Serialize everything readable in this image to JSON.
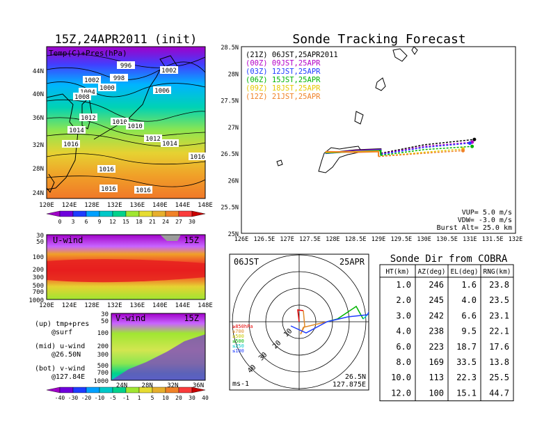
{
  "map_panel": {
    "title": "15Z,24APR2011 (init)",
    "label": "Temp(C)+Pres(hPa)",
    "lat_ticks": [
      "44N",
      "40N",
      "36N",
      "32N",
      "28N",
      "24N"
    ],
    "lon_ticks": [
      "120E",
      "124E",
      "128E",
      "132E",
      "136E",
      "140E",
      "144E",
      "148E"
    ],
    "isobar_labels": [
      "996",
      "1002",
      "1002",
      "998",
      "1000",
      "1004",
      "1006",
      "1008",
      "1012",
      "1010",
      "1010",
      "1014",
      "1012",
      "1014",
      "1016",
      "1016",
      "1016",
      "1016",
      "1016"
    ],
    "colorbar_ticks": [
      "0",
      "3",
      "6",
      "9",
      "12",
      "15",
      "18",
      "21",
      "24",
      "27",
      "30"
    ],
    "colorbar_colors": [
      "#a000c8",
      "#6e00dc",
      "#1e3cff",
      "#00a0ff",
      "#00c8c8",
      "#00d28c",
      "#a0e632",
      "#e6dc32",
      "#e6af2d",
      "#f08228",
      "#fa3c3c",
      "#c80000"
    ]
  },
  "u_panel": {
    "label": "U-wind",
    "time": "15Z",
    "y_ticks": [
      "30",
      "50",
      "100",
      "200",
      "300",
      "500",
      "700",
      "1000"
    ],
    "x_ticks": [
      "120E",
      "124E",
      "128E",
      "132E",
      "136E",
      "140E",
      "144E",
      "148E"
    ]
  },
  "v_panel": {
    "label": "V-wind",
    "time": "15Z",
    "y_ticks": [
      "30",
      "50",
      "100",
      "200",
      "300",
      "500",
      "700",
      "1000"
    ],
    "x_ticks": [
      "24N",
      "28N",
      "32N",
      "36N"
    ],
    "colorbar_ticks": [
      "-40",
      "-30",
      "-20",
      "-10",
      "-5",
      "-1",
      "1",
      "5",
      "10",
      "20",
      "30",
      "40"
    ],
    "colorbar_colors": [
      "#a000c8",
      "#6e00dc",
      "#1e3cff",
      "#00a0ff",
      "#00c8c8",
      "#00d28c",
      "#a0e632",
      "#e6dc32",
      "#e6af2d",
      "#f08228",
      "#fa3c3c",
      "#c80000"
    ]
  },
  "legend_notes": {
    "line1": "(up) tmp+pres",
    "line2": "@surf",
    "line3": "(mid) u-wind",
    "line4": "@26.50N",
    "line5": "(bot) v-wind",
    "line6": "@127.84E"
  },
  "track_panel": {
    "title": "Sonde Tracking Forecast",
    "runs": [
      {
        "label": "(21Z) 06JST,25APR2011",
        "color": "#000000"
      },
      {
        "label": "(00Z) 09JST,25APR",
        "color": "#b400c8"
      },
      {
        "label": "(03Z) 12JST,25APR",
        "color": "#1e3cff"
      },
      {
        "label": "(06Z) 15JST,25APR",
        "color": "#00b400"
      },
      {
        "label": "(09Z) 18JST,25APR",
        "color": "#e6c800"
      },
      {
        "label": "(12Z) 21JST,25APR",
        "color": "#f08228"
      }
    ],
    "params": {
      "vup": "VUP= 5.0 m/s",
      "vdw": "VDW= -3.0 m/s",
      "burst": "Burst Alt= 25.0 km"
    },
    "lat_ticks": [
      "28.5N",
      "28N",
      "27.5N",
      "27N",
      "26.5N",
      "26N",
      "25.5N",
      "25N"
    ],
    "lon_ticks": [
      "126E",
      "126.5E",
      "127E",
      "127.5E",
      "128E",
      "128.5E",
      "129E",
      "129.5E",
      "130E",
      "130.5E",
      "131E",
      "131.5E",
      "132E"
    ]
  },
  "chart_data": [
    {
      "type": "line",
      "title": "Sonde Tracking Forecast",
      "xlim": [
        126,
        132
      ],
      "ylim": [
        25,
        28.5
      ],
      "series": [
        {
          "name": "(21Z) 06JST,25APR2011",
          "x": [
            127.84,
            128.5,
            129.05,
            129.05,
            130.0,
            131.1
          ],
          "y": [
            26.5,
            26.56,
            26.58,
            26.5,
            26.66,
            26.76
          ]
        },
        {
          "name": "(00Z) 09JST,25APR",
          "x": [
            127.84,
            128.5,
            129.05,
            129.05,
            130.0,
            131.05
          ],
          "y": [
            26.5,
            26.55,
            26.57,
            26.49,
            26.63,
            26.71
          ]
        },
        {
          "name": "(03Z) 12JST,25APR",
          "x": [
            127.84,
            128.5,
            129.05,
            129.05,
            130.0,
            131.0
          ],
          "y": [
            26.5,
            26.54,
            26.56,
            26.48,
            26.61,
            26.69
          ]
        },
        {
          "name": "(06Z) 15JST,25APR",
          "x": [
            127.84,
            128.5,
            129.05,
            129.05,
            130.0,
            131.05
          ],
          "y": [
            26.51,
            26.53,
            26.55,
            26.46,
            26.57,
            26.63
          ]
        },
        {
          "name": "(09Z) 18JST,25APR",
          "x": [
            127.84,
            128.5,
            129.0,
            129.0,
            130.0,
            130.85
          ],
          "y": [
            26.52,
            26.53,
            26.54,
            26.44,
            26.52,
            26.58
          ]
        },
        {
          "name": "(12Z) 21JST,25APR",
          "x": [
            127.84,
            128.5,
            129.0,
            129.0,
            130.0,
            130.85
          ],
          "y": [
            26.53,
            26.52,
            26.53,
            26.44,
            26.5,
            26.55
          ]
        }
      ]
    },
    {
      "type": "table",
      "title": "Sonde Dir from COBRA",
      "columns": [
        "HT(km)",
        "AZ(deg)",
        "EL(deg)",
        "RNG(km)"
      ],
      "rows": [
        [
          "1.0",
          "246",
          "1.6",
          "23.8"
        ],
        [
          "2.0",
          "245",
          "4.0",
          "23.5"
        ],
        [
          "3.0",
          "242",
          "6.6",
          "23.1"
        ],
        [
          "4.0",
          "238",
          "9.5",
          "22.1"
        ],
        [
          "6.0",
          "223",
          "18.7",
          "17.6"
        ],
        [
          "8.0",
          "169",
          "33.5",
          "13.8"
        ],
        [
          "10.0",
          "113",
          "22.3",
          "25.5"
        ],
        [
          "12.0",
          "100",
          "15.1",
          "44.7"
        ]
      ]
    }
  ],
  "hodograph": {
    "time_label": "06JST",
    "date_label": "25APR",
    "ring_labels": [
      "10",
      "20",
      "30",
      "40"
    ],
    "units": "ms-1",
    "location_line1": "26.5N",
    "location_line2": "127.875E",
    "level_legend": [
      {
        "label": "≥850hPa",
        "color": "#e60000"
      },
      {
        "label": "≥700",
        "color": "#e08a28"
      },
      {
        "label": "≥500",
        "color": "#c8c800"
      },
      {
        "label": "≤500",
        "color": "#00b400"
      },
      {
        "label": "≤250",
        "color": "#00c8c8"
      },
      {
        "label": "≤100",
        "color": "#1e3cff"
      }
    ]
  }
}
